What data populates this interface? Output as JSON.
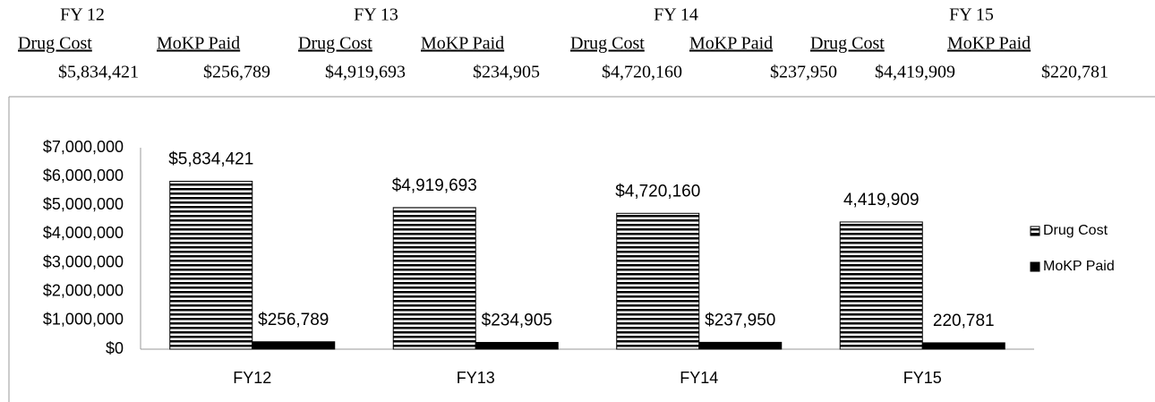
{
  "header": {
    "groups": [
      {
        "year": "FY 12",
        "columns": [
          {
            "label": "Drug Cost",
            "value": "$5,834,421"
          },
          {
            "label": "MoKP Paid",
            "value": "$256,789"
          }
        ]
      },
      {
        "year": "FY 13",
        "columns": [
          {
            "label": "Drug Cost",
            "value": "$4,919,693"
          },
          {
            "label": "MoKP Paid",
            "value": "$234,905"
          }
        ]
      },
      {
        "year": "FY 14",
        "columns": [
          {
            "label": "Drug Cost",
            "value": "$4,720,160"
          },
          {
            "label": "MoKP Paid",
            "value": "$237,950"
          }
        ]
      },
      {
        "year": "FY 15",
        "columns": [
          {
            "label": "Drug Cost",
            "value": "$4,419,909"
          },
          {
            "label": "MoKP Paid",
            "value": "$220,781"
          }
        ]
      }
    ]
  },
  "chart_data": {
    "type": "bar",
    "categories": [
      "FY12",
      "FY13",
      "FY14",
      "FY15"
    ],
    "series": [
      {
        "name": "Drug Cost",
        "color": "striped",
        "values": [
          5834421,
          4919693,
          4720160,
          4419909
        ],
        "value_labels": [
          "$5,834,421",
          "$4,919,693",
          "$4,720,160",
          "4,419,909"
        ]
      },
      {
        "name": "MoKP Paid",
        "color": "#000000",
        "values": [
          256789,
          234905,
          237950,
          220781
        ],
        "value_labels": [
          "$256,789",
          "$234,905",
          "$237,950",
          "220,781"
        ]
      }
    ],
    "ylim": [
      0,
      7000000
    ],
    "yticks": [
      {
        "value": 0,
        "label": "$0"
      },
      {
        "value": 1000000,
        "label": "$1,000,000"
      },
      {
        "value": 2000000,
        "label": "$2,000,000"
      },
      {
        "value": 3000000,
        "label": "$3,000,000"
      },
      {
        "value": 4000000,
        "label": "$4,000,000"
      },
      {
        "value": 5000000,
        "label": "$5,000,000"
      },
      {
        "value": 6000000,
        "label": "$6,000,000"
      },
      {
        "value": 7000000,
        "label": "$7,000,000"
      }
    ],
    "legend": "right",
    "grid": false
  }
}
